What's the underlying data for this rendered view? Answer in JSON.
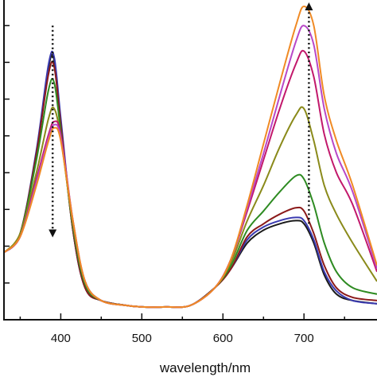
{
  "chart_data": {
    "type": "line",
    "title": "",
    "xlabel": "wavelength/nm",
    "ylabel": "",
    "xlim": [
      330,
      790
    ],
    "ylim": [
      0.0,
      1.0
    ],
    "x_ticks": [
      400,
      500,
      600,
      700
    ],
    "x_tick_labels": [
      "400",
      "500",
      "600",
      "700"
    ],
    "y_ticks_count": 8,
    "grid": false,
    "legend": "none",
    "annotations": [
      {
        "type": "dotted-arrow",
        "direction": "down",
        "x": 390,
        "y_from": 0.92,
        "y_to": 0.25
      },
      {
        "type": "dotted-arrow",
        "direction": "up",
        "x": 706,
        "y_from": 0.3,
        "y_to": 1.0
      }
    ],
    "series": [
      {
        "color": "#1a1a1a",
        "values": [
          [
            330,
            0.21
          ],
          [
            350,
            0.27
          ],
          [
            370,
            0.52
          ],
          [
            385,
            0.79
          ],
          [
            392,
            0.81
          ],
          [
            400,
            0.62
          ],
          [
            415,
            0.28
          ],
          [
            430,
            0.1
          ],
          [
            450,
            0.06
          ],
          [
            480,
            0.045
          ],
          [
            500,
            0.04
          ],
          [
            530,
            0.04
          ],
          [
            560,
            0.045
          ],
          [
            590,
            0.1
          ],
          [
            610,
            0.16
          ],
          [
            630,
            0.24
          ],
          [
            650,
            0.28
          ],
          [
            670,
            0.3
          ],
          [
            690,
            0.31
          ],
          [
            700,
            0.3
          ],
          [
            712,
            0.24
          ],
          [
            725,
            0.14
          ],
          [
            740,
            0.08
          ],
          [
            760,
            0.06
          ],
          [
            790,
            0.05
          ]
        ]
      },
      {
        "color": "#3a3ab0",
        "values": [
          [
            330,
            0.21
          ],
          [
            350,
            0.27
          ],
          [
            370,
            0.53
          ],
          [
            385,
            0.8
          ],
          [
            392,
            0.82
          ],
          [
            400,
            0.63
          ],
          [
            415,
            0.28
          ],
          [
            430,
            0.1
          ],
          [
            450,
            0.06
          ],
          [
            480,
            0.045
          ],
          [
            500,
            0.04
          ],
          [
            530,
            0.04
          ],
          [
            560,
            0.045
          ],
          [
            590,
            0.1
          ],
          [
            610,
            0.16
          ],
          [
            630,
            0.25
          ],
          [
            650,
            0.29
          ],
          [
            670,
            0.31
          ],
          [
            690,
            0.32
          ],
          [
            700,
            0.31
          ],
          [
            712,
            0.25
          ],
          [
            725,
            0.15
          ],
          [
            740,
            0.09
          ],
          [
            760,
            0.06
          ],
          [
            790,
            0.05
          ]
        ]
      },
      {
        "color": "#8b1a1a",
        "values": [
          [
            330,
            0.21
          ],
          [
            350,
            0.27
          ],
          [
            370,
            0.52
          ],
          [
            385,
            0.77
          ],
          [
            392,
            0.79
          ],
          [
            400,
            0.61
          ],
          [
            415,
            0.28
          ],
          [
            430,
            0.1
          ],
          [
            450,
            0.06
          ],
          [
            480,
            0.045
          ],
          [
            500,
            0.04
          ],
          [
            530,
            0.04
          ],
          [
            560,
            0.045
          ],
          [
            590,
            0.1
          ],
          [
            610,
            0.16
          ],
          [
            630,
            0.26
          ],
          [
            650,
            0.3
          ],
          [
            670,
            0.33
          ],
          [
            690,
            0.35
          ],
          [
            700,
            0.34
          ],
          [
            712,
            0.27
          ],
          [
            725,
            0.17
          ],
          [
            740,
            0.1
          ],
          [
            760,
            0.07
          ],
          [
            790,
            0.06
          ]
        ]
      },
      {
        "color": "#2e8b22",
        "values": [
          [
            330,
            0.21
          ],
          [
            350,
            0.27
          ],
          [
            370,
            0.5
          ],
          [
            385,
            0.72
          ],
          [
            392,
            0.74
          ],
          [
            400,
            0.59
          ],
          [
            415,
            0.29
          ],
          [
            430,
            0.11
          ],
          [
            450,
            0.06
          ],
          [
            480,
            0.045
          ],
          [
            500,
            0.04
          ],
          [
            530,
            0.04
          ],
          [
            560,
            0.045
          ],
          [
            590,
            0.1
          ],
          [
            610,
            0.17
          ],
          [
            630,
            0.28
          ],
          [
            650,
            0.34
          ],
          [
            670,
            0.4
          ],
          [
            690,
            0.45
          ],
          [
            700,
            0.44
          ],
          [
            712,
            0.36
          ],
          [
            725,
            0.24
          ],
          [
            740,
            0.15
          ],
          [
            760,
            0.1
          ],
          [
            790,
            0.08
          ]
        ]
      },
      {
        "color": "#8a8a1a",
        "values": [
          [
            330,
            0.21
          ],
          [
            350,
            0.27
          ],
          [
            370,
            0.46
          ],
          [
            385,
            0.63
          ],
          [
            392,
            0.66
          ],
          [
            400,
            0.57
          ],
          [
            415,
            0.3
          ],
          [
            430,
            0.12
          ],
          [
            450,
            0.06
          ],
          [
            480,
            0.045
          ],
          [
            500,
            0.04
          ],
          [
            530,
            0.04
          ],
          [
            560,
            0.045
          ],
          [
            590,
            0.1
          ],
          [
            610,
            0.18
          ],
          [
            630,
            0.31
          ],
          [
            650,
            0.42
          ],
          [
            670,
            0.54
          ],
          [
            690,
            0.64
          ],
          [
            700,
            0.66
          ],
          [
            712,
            0.56
          ],
          [
            725,
            0.42
          ],
          [
            740,
            0.33
          ],
          [
            760,
            0.24
          ],
          [
            790,
            0.12
          ]
        ]
      },
      {
        "color": "#c2186b",
        "values": [
          [
            330,
            0.21
          ],
          [
            350,
            0.26
          ],
          [
            370,
            0.44
          ],
          [
            385,
            0.58
          ],
          [
            392,
            0.62
          ],
          [
            400,
            0.58
          ],
          [
            415,
            0.31
          ],
          [
            430,
            0.12
          ],
          [
            450,
            0.06
          ],
          [
            480,
            0.045
          ],
          [
            500,
            0.04
          ],
          [
            530,
            0.04
          ],
          [
            560,
            0.045
          ],
          [
            590,
            0.1
          ],
          [
            610,
            0.19
          ],
          [
            630,
            0.34
          ],
          [
            650,
            0.5
          ],
          [
            670,
            0.66
          ],
          [
            690,
            0.8
          ],
          [
            700,
            0.84
          ],
          [
            712,
            0.76
          ],
          [
            725,
            0.58
          ],
          [
            740,
            0.46
          ],
          [
            760,
            0.36
          ],
          [
            790,
            0.15
          ]
        ]
      },
      {
        "color": "#b848c8",
        "values": [
          [
            330,
            0.21
          ],
          [
            350,
            0.26
          ],
          [
            370,
            0.43
          ],
          [
            385,
            0.57
          ],
          [
            392,
            0.61
          ],
          [
            400,
            0.57
          ],
          [
            415,
            0.31
          ],
          [
            430,
            0.12
          ],
          [
            450,
            0.06
          ],
          [
            480,
            0.045
          ],
          [
            500,
            0.04
          ],
          [
            530,
            0.04
          ],
          [
            560,
            0.045
          ],
          [
            590,
            0.1
          ],
          [
            610,
            0.19
          ],
          [
            630,
            0.35
          ],
          [
            650,
            0.52
          ],
          [
            670,
            0.7
          ],
          [
            690,
            0.87
          ],
          [
            700,
            0.92
          ],
          [
            712,
            0.86
          ],
          [
            725,
            0.66
          ],
          [
            740,
            0.52
          ],
          [
            760,
            0.4
          ],
          [
            790,
            0.16
          ]
        ]
      },
      {
        "color": "#f08a24",
        "values": [
          [
            330,
            0.21
          ],
          [
            350,
            0.26
          ],
          [
            370,
            0.42
          ],
          [
            385,
            0.56
          ],
          [
            392,
            0.6
          ],
          [
            400,
            0.56
          ],
          [
            415,
            0.31
          ],
          [
            430,
            0.12
          ],
          [
            450,
            0.06
          ],
          [
            480,
            0.045
          ],
          [
            500,
            0.04
          ],
          [
            530,
            0.04
          ],
          [
            560,
            0.045
          ],
          [
            590,
            0.1
          ],
          [
            610,
            0.19
          ],
          [
            630,
            0.36
          ],
          [
            650,
            0.55
          ],
          [
            670,
            0.74
          ],
          [
            690,
            0.92
          ],
          [
            700,
            0.98
          ],
          [
            712,
            0.92
          ],
          [
            725,
            0.7
          ],
          [
            740,
            0.56
          ],
          [
            760,
            0.42
          ],
          [
            790,
            0.17
          ]
        ]
      }
    ]
  }
}
